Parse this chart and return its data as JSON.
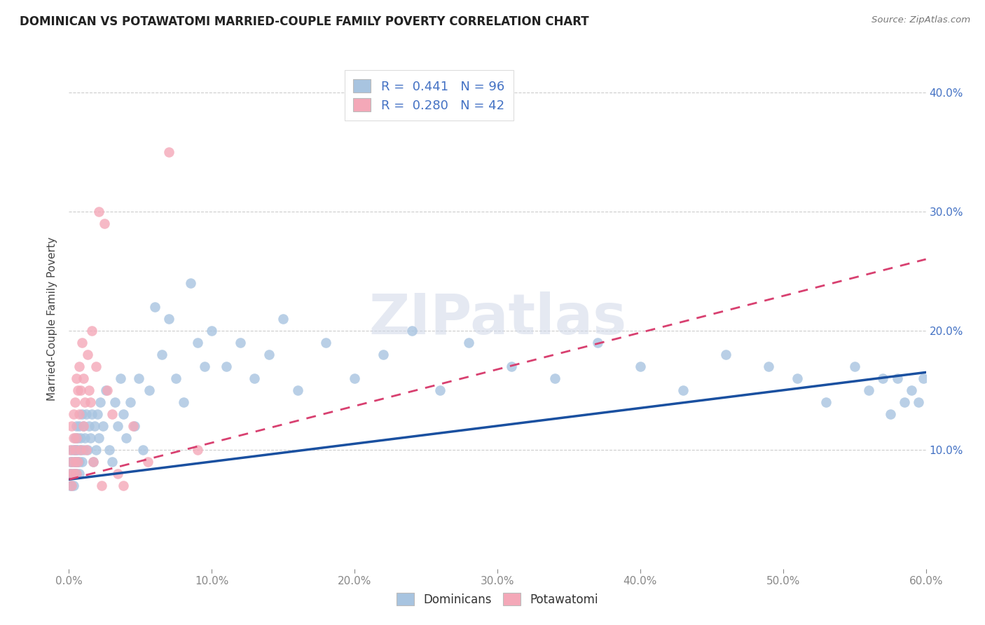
{
  "title": "DOMINICAN VS POTAWATOMI MARRIED-COUPLE FAMILY POVERTY CORRELATION CHART",
  "source": "Source: ZipAtlas.com",
  "ylabel": "Married-Couple Family Poverty",
  "legend_label1": "Dominicans",
  "legend_label2": "Potawatomi",
  "legend_R1": "R = 0.441",
  "legend_N1": "N = 96",
  "legend_R2": "R = 0.280",
  "legend_N2": "N = 42",
  "dominican_color": "#a8c4e0",
  "potawatomi_color": "#f4a8b8",
  "dominican_line_color": "#1a50a0",
  "potawatomi_line_color": "#d84070",
  "watermark_text": "ZIPatlas",
  "background_color": "#ffffff",
  "xmin": 0.0,
  "xmax": 0.6,
  "ymin": 0.0,
  "ymax": 0.42,
  "dominican_line_start_y": 0.075,
  "dominican_line_end_y": 0.165,
  "potawatomi_line_start_y": 0.075,
  "potawatomi_line_end_y": 0.26,
  "dominican_x": [
    0.001,
    0.001,
    0.001,
    0.002,
    0.002,
    0.002,
    0.002,
    0.003,
    0.003,
    0.003,
    0.003,
    0.004,
    0.004,
    0.004,
    0.004,
    0.005,
    0.005,
    0.005,
    0.005,
    0.006,
    0.006,
    0.006,
    0.007,
    0.007,
    0.007,
    0.008,
    0.008,
    0.009,
    0.009,
    0.01,
    0.01,
    0.011,
    0.012,
    0.013,
    0.014,
    0.015,
    0.016,
    0.017,
    0.018,
    0.019,
    0.02,
    0.021,
    0.022,
    0.024,
    0.026,
    0.028,
    0.03,
    0.032,
    0.034,
    0.036,
    0.038,
    0.04,
    0.043,
    0.046,
    0.049,
    0.052,
    0.056,
    0.06,
    0.065,
    0.07,
    0.075,
    0.08,
    0.085,
    0.09,
    0.095,
    0.1,
    0.11,
    0.12,
    0.13,
    0.14,
    0.15,
    0.16,
    0.18,
    0.2,
    0.22,
    0.24,
    0.26,
    0.28,
    0.31,
    0.34,
    0.37,
    0.4,
    0.43,
    0.46,
    0.49,
    0.51,
    0.53,
    0.55,
    0.56,
    0.57,
    0.575,
    0.58,
    0.585,
    0.59,
    0.595,
    0.598
  ],
  "dominican_y": [
    0.08,
    0.09,
    0.07,
    0.1,
    0.09,
    0.07,
    0.08,
    0.1,
    0.08,
    0.09,
    0.07,
    0.11,
    0.08,
    0.1,
    0.09,
    0.08,
    0.1,
    0.12,
    0.09,
    0.09,
    0.11,
    0.1,
    0.08,
    0.12,
    0.09,
    0.11,
    0.1,
    0.09,
    0.13,
    0.1,
    0.12,
    0.11,
    0.13,
    0.1,
    0.12,
    0.11,
    0.13,
    0.09,
    0.12,
    0.1,
    0.13,
    0.11,
    0.14,
    0.12,
    0.15,
    0.1,
    0.09,
    0.14,
    0.12,
    0.16,
    0.13,
    0.11,
    0.14,
    0.12,
    0.16,
    0.1,
    0.15,
    0.22,
    0.18,
    0.21,
    0.16,
    0.14,
    0.24,
    0.19,
    0.17,
    0.2,
    0.17,
    0.19,
    0.16,
    0.18,
    0.21,
    0.15,
    0.19,
    0.16,
    0.18,
    0.2,
    0.15,
    0.19,
    0.17,
    0.16,
    0.19,
    0.17,
    0.15,
    0.18,
    0.17,
    0.16,
    0.14,
    0.17,
    0.15,
    0.16,
    0.13,
    0.16,
    0.14,
    0.15,
    0.14,
    0.16
  ],
  "potawatomi_x": [
    0.001,
    0.001,
    0.002,
    0.002,
    0.002,
    0.003,
    0.003,
    0.003,
    0.004,
    0.004,
    0.004,
    0.005,
    0.005,
    0.005,
    0.006,
    0.006,
    0.007,
    0.007,
    0.008,
    0.008,
    0.009,
    0.01,
    0.01,
    0.011,
    0.012,
    0.013,
    0.014,
    0.015,
    0.016,
    0.017,
    0.019,
    0.021,
    0.023,
    0.025,
    0.027,
    0.03,
    0.034,
    0.038,
    0.045,
    0.055,
    0.07,
    0.09
  ],
  "potawatomi_y": [
    0.08,
    0.1,
    0.07,
    0.09,
    0.12,
    0.11,
    0.08,
    0.13,
    0.1,
    0.09,
    0.14,
    0.08,
    0.11,
    0.16,
    0.09,
    0.15,
    0.13,
    0.17,
    0.1,
    0.15,
    0.19,
    0.12,
    0.16,
    0.14,
    0.1,
    0.18,
    0.15,
    0.14,
    0.2,
    0.09,
    0.17,
    0.3,
    0.07,
    0.29,
    0.15,
    0.13,
    0.08,
    0.07,
    0.12,
    0.09,
    0.35,
    0.1
  ]
}
